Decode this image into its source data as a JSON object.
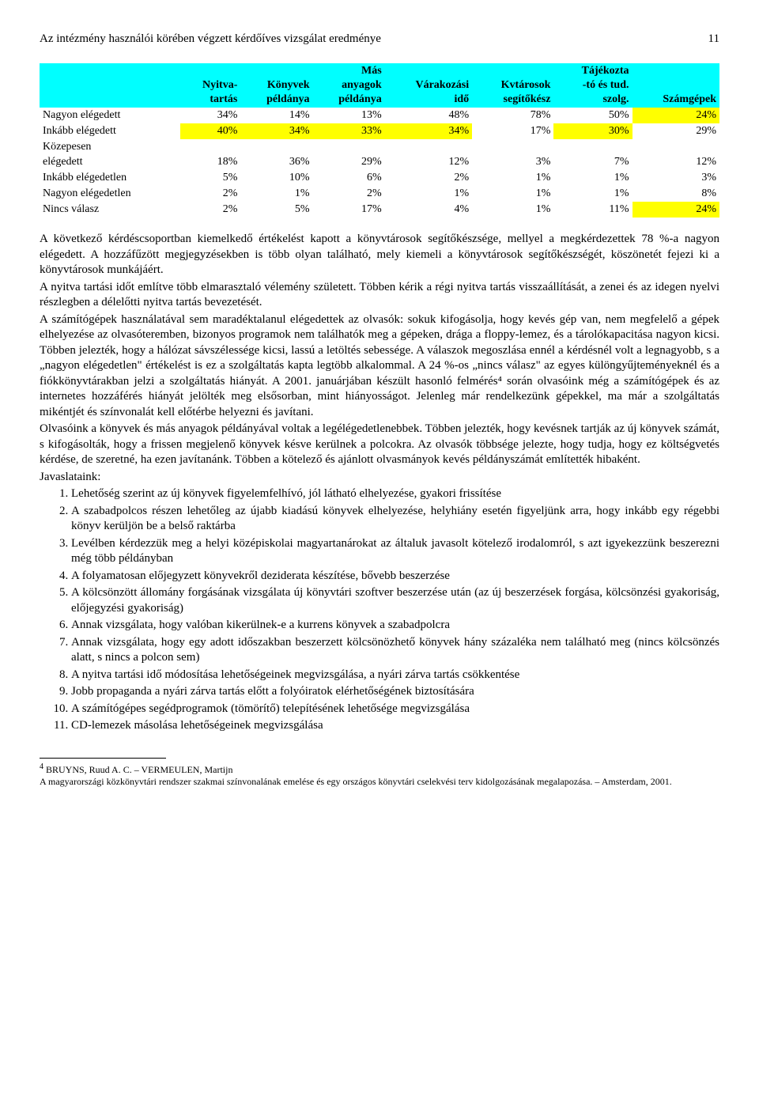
{
  "header": {
    "title": "Az intézmény használói körében végzett kérdőíves vizsgálat eredménye",
    "page_number": "11"
  },
  "table": {
    "columns": [
      "",
      "Nyitva-\ntartás",
      "Könyvek\npéldánya",
      "Más\nanyagok\npéldánya",
      "Várakozási\nidő",
      "Kvtárosok\nsegítőkész",
      "Tájékozta\n-tó és tud.\nszolg.",
      "Számgépek"
    ],
    "rows": [
      {
        "label": "Nagyon elégedett",
        "vals": [
          "34%",
          "14%",
          "13%",
          "48%",
          "78%",
          "50%",
          "24%"
        ],
        "hilite": [
          false,
          false,
          false,
          false,
          false,
          false,
          "yellow"
        ]
      },
      {
        "label": "Inkább elégedett",
        "vals": [
          "40%",
          "34%",
          "33%",
          "34%",
          "17%",
          "30%",
          "29%"
        ],
        "hilite": [
          "yellow",
          "yellow",
          "yellow",
          "yellow",
          false,
          "yellow",
          false
        ]
      },
      {
        "label": "Közepesen elégedett",
        "vals": [
          "18%",
          "36%",
          "29%",
          "12%",
          "3%",
          "7%",
          "12%"
        ],
        "hilite": [
          false,
          false,
          false,
          false,
          false,
          false,
          false
        ]
      },
      {
        "label": "Inkább elégedetlen",
        "vals": [
          "5%",
          "10%",
          "6%",
          "2%",
          "1%",
          "1%",
          "3%"
        ],
        "hilite": [
          false,
          false,
          false,
          false,
          false,
          false,
          false
        ]
      },
      {
        "label": "Nagyon elégedetlen",
        "vals": [
          "2%",
          "1%",
          "2%",
          "1%",
          "1%",
          "1%",
          "8%"
        ],
        "hilite": [
          false,
          false,
          false,
          false,
          false,
          false,
          false
        ]
      },
      {
        "label": "Nincs válasz",
        "vals": [
          "2%",
          "5%",
          "17%",
          "4%",
          "1%",
          "11%",
          "24%"
        ],
        "hilite": [
          false,
          false,
          false,
          false,
          false,
          false,
          "yellow"
        ]
      }
    ],
    "header_bg": "#00ffff",
    "cell_fontsize": 14
  },
  "body_paragraphs": [
    "A következő kérdéscsoportban kiemelkedő értékelést kapott a könyvtárosok segítőkészsége, mellyel a megkérdezettek 78 %-a nagyon elégedett. A hozzáfűzött megjegyzésekben is több olyan található, mely kiemeli a könyvtárosok segítőkészségét, köszönetét fejezi ki a könyvtárosok munkájáért.",
    "A nyitva tartási időt említve több elmarasztaló vélemény született. Többen kérik a régi nyitva tartás visszaállítását, a zenei és az idegen nyelvi részlegben a délelőtti nyitva tartás bevezetését.",
    "A számítógépek használatával sem maradéktalanul elégedettek az olvasók: sokuk kifogásolja, hogy kevés gép van, nem megfelelő a gépek elhelyezése az olvasóteremben, bizonyos programok nem találhatók meg a gépeken, drága a floppy-lemez, és a tárolókapacitása nagyon kicsi. Többen jelezték, hogy a hálózat sávszélessége kicsi, lassú a letöltés sebessége. A válaszok megoszlása ennél a kérdésnél volt a legnagyobb, s a „nagyon elégedetlen\" értékelést is ez a szolgáltatás kapta legtöbb alkalommal. A 24 %-os „nincs válasz\" az egyes különgyűjteményeknél és a fiókkönyvtárakban jelzi a szolgáltatás hiányát. A 2001. januárjában készült hasonló felmérés⁴ során olvasóink még a számítógépek és az internetes hozzáférés hiányát jelölték meg elsősorban, mint hiányosságot. Jelenleg már rendelkezünk gépekkel, ma már a szolgáltatás mikéntjét és színvonalát kell előtérbe helyezni és javítani.",
    "Olvasóink a könyvek és más anyagok példányával voltak a legélégedetlenebbek. Többen jelezték, hogy kevésnek tartják az új könyvek számát, s kifogásolták, hogy a frissen megjelenő könyvek késve kerülnek a polcokra. Az olvasók többsége jelezte, hogy tudja, hogy ez költségvetés kérdése, de szeretné, ha ezen javítanánk. Többen a kötelező és ajánlott olvasmányok kevés példányszámát említették hibaként."
  ],
  "list_label": "Javaslataink:",
  "list_items": [
    "Lehetőség szerint az új könyvek figyelemfelhívó, jól látható elhelyezése, gyakori frissítése",
    "A szabadpolcos részen lehetőleg az újabb kiadású könyvek elhelyezése, helyhiány esetén figyeljünk arra, hogy inkább egy régebbi könyv kerüljön be a belső raktárba",
    "Levélben kérdezzük meg a helyi középiskolai magyartanárokat az általuk javasolt kötelező irodalomról, s azt igyekezzünk beszerezni még több példányban",
    "A folyamatosan előjegyzett könyvekről deziderata készítése, bővebb beszerzése",
    "A kölcsönzött állomány forgásának vizsgálata új könyvtári szoftver beszerzése után (az új beszerzések forgása, kölcsönzési gyakoriság, előjegyzési gyakoriság)",
    "Annak vizsgálata, hogy valóban kikerülnek-e a kurrens könyvek a szabadpolcra",
    "Annak vizsgálata, hogy egy adott időszakban beszerzett kölcsönözhető könyvek hány százaléka nem található meg (nincs kölcsönzés alatt, s nincs a polcon sem)",
    "A nyitva tartási idő módosítása lehetőségeinek megvizsgálása, a nyári zárva tartás csökkentése",
    "Jobb propaganda a nyári zárva tartás előtt a folyóiratok elérhetőségének biztosítására",
    "A számítógépes segédprogramok (tömörítő) telepítésének lehetősége megvizsgálása",
    "CD-lemezek másolása lehetőségeinek megvizsgálása"
  ],
  "footnote": {
    "marker": "4",
    "text1": "BRUYNS, Ruud A. C. – VERMEULEN, Martijn",
    "text2": "A magyarországi közkönyvtári rendszer szakmai színvonalának emelése és egy országos könyvtári cselekvési terv kidolgozásának megalapozása. – Amsterdam, 2001."
  }
}
